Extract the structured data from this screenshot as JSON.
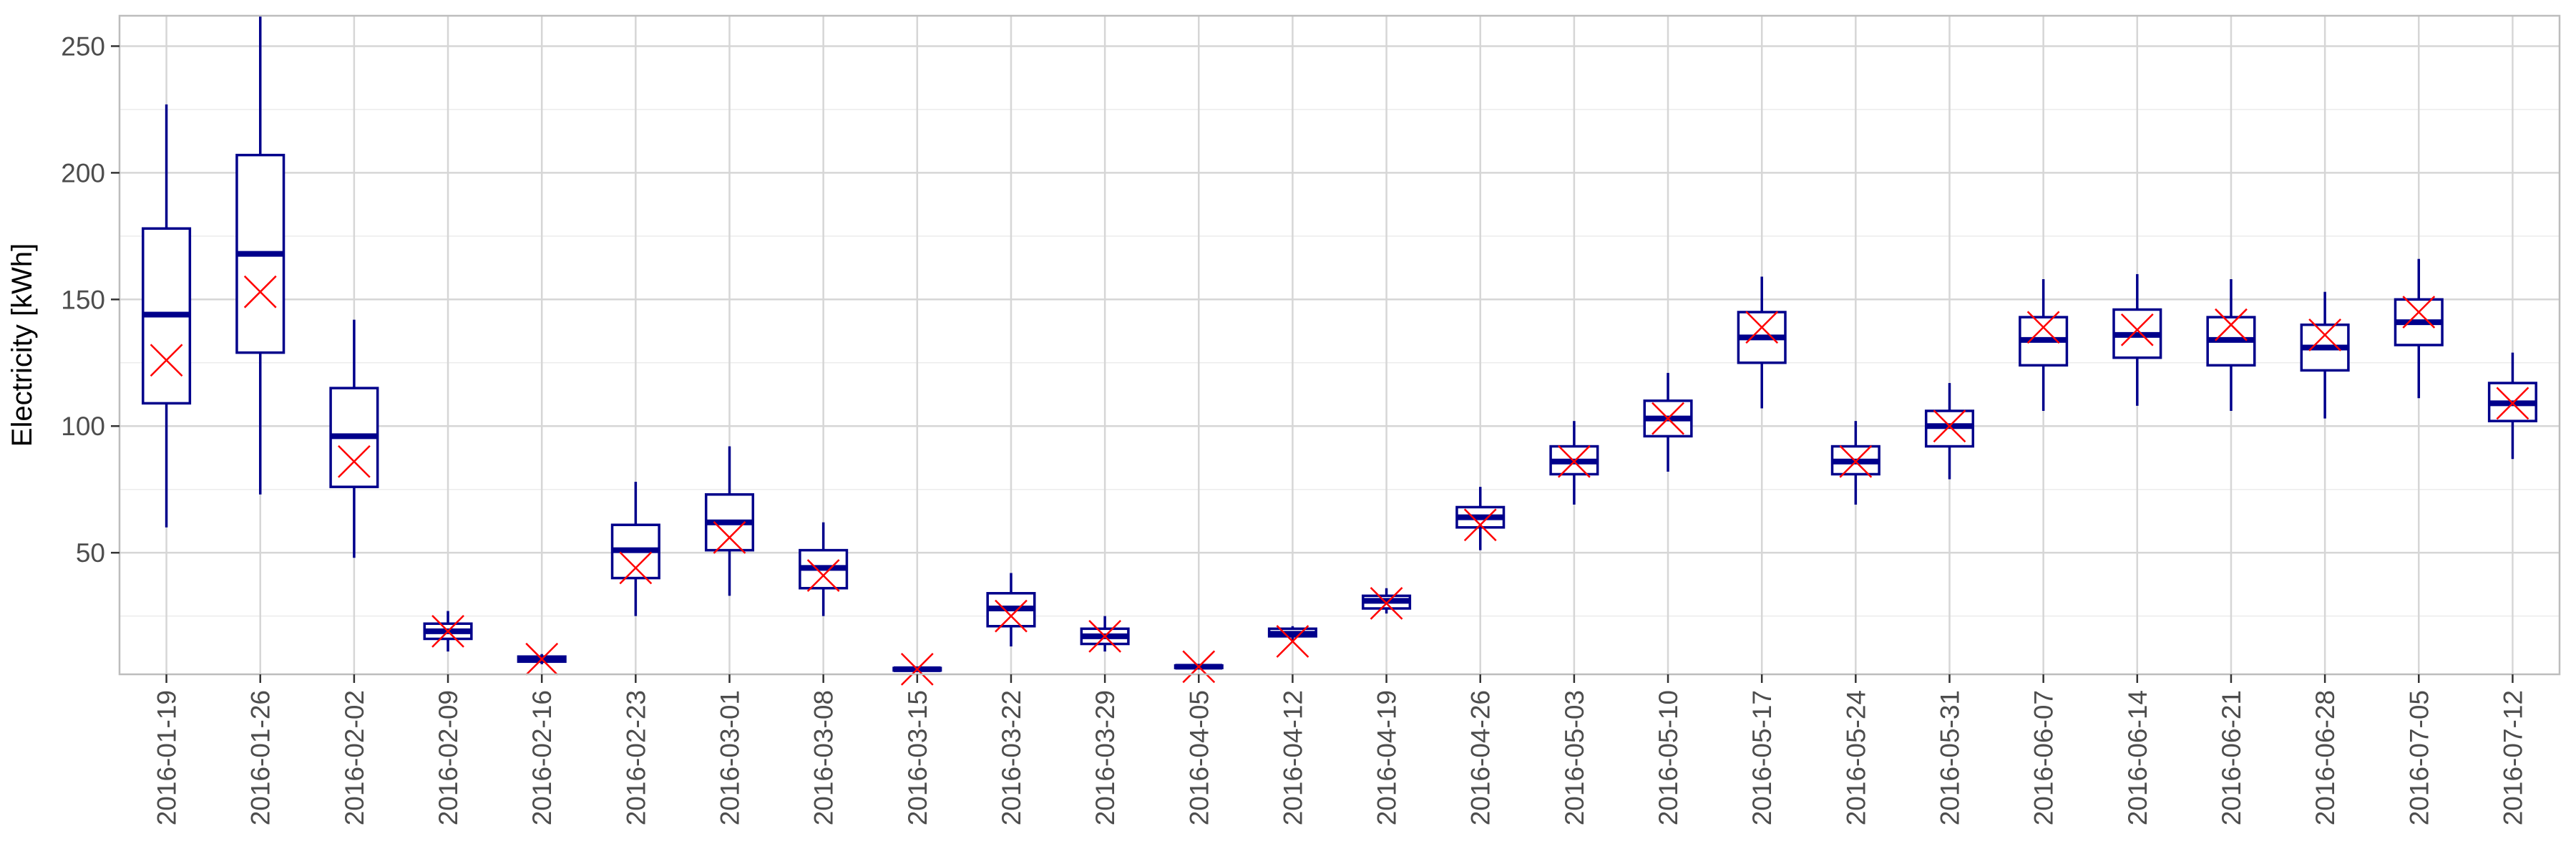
{
  "chart_data": {
    "type": "boxplot",
    "title": "",
    "xlabel": "",
    "ylabel": "Electricity [kWh]",
    "ylim": [
      2,
      262
    ],
    "yticks": [
      50,
      100,
      150,
      200,
      250
    ],
    "grid": true,
    "legend": "none",
    "colors": {
      "box": "#00008b",
      "mean_marker": "#ff0000",
      "grid_major": "#d6d6d6",
      "grid_minor": "#ececec",
      "panel_border": "#bdbdbd"
    },
    "mean_marker": "x",
    "categories": [
      "2016-01-19",
      "2016-01-26",
      "2016-02-02",
      "2016-02-09",
      "2016-02-16",
      "2016-02-23",
      "2016-03-01",
      "2016-03-08",
      "2016-03-15",
      "2016-03-22",
      "2016-03-29",
      "2016-04-05",
      "2016-04-12",
      "2016-04-19",
      "2016-04-26",
      "2016-05-03",
      "2016-05-10",
      "2016-05-17",
      "2016-05-24",
      "2016-05-31",
      "2016-06-07",
      "2016-06-14",
      "2016-06-21",
      "2016-06-28",
      "2016-07-05",
      "2016-07-12"
    ],
    "boxes": [
      {
        "low": 60,
        "q1": 109,
        "median": 144,
        "q3": 178,
        "high": 227,
        "mean": 126
      },
      {
        "low": 73,
        "q1": 129,
        "median": 168,
        "q3": 207,
        "high": 262,
        "mean": 153
      },
      {
        "low": 48,
        "q1": 76,
        "median": 96,
        "q3": 115,
        "high": 142,
        "mean": 86
      },
      {
        "low": 11,
        "q1": 16,
        "median": 19,
        "q3": 22,
        "high": 27,
        "mean": 19
      },
      {
        "low": 6,
        "q1": 7,
        "median": 8,
        "q3": 9,
        "high": 10,
        "mean": 8
      },
      {
        "low": 25,
        "q1": 40,
        "median": 51,
        "q3": 61,
        "high": 78,
        "mean": 44
      },
      {
        "low": 33,
        "q1": 51,
        "median": 62,
        "q3": 73,
        "high": 92,
        "mean": 56
      },
      {
        "low": 25,
        "q1": 36,
        "median": 44,
        "q3": 51,
        "high": 62,
        "mean": 41
      },
      {
        "low": 3,
        "q1": 3.5,
        "median": 4,
        "q3": 4.5,
        "high": 5,
        "mean": 4
      },
      {
        "low": 13,
        "q1": 21,
        "median": 28,
        "q3": 34,
        "high": 42,
        "mean": 25
      },
      {
        "low": 11,
        "q1": 14,
        "median": 17,
        "q3": 20,
        "high": 25,
        "mean": 17
      },
      {
        "low": 4,
        "q1": 4.5,
        "median": 5,
        "q3": 5.5,
        "high": 6,
        "mean": 5
      },
      {
        "low": 15,
        "q1": 17,
        "median": 18,
        "q3": 20,
        "high": 21,
        "mean": 15
      },
      {
        "low": 26,
        "q1": 28,
        "median": 31,
        "q3": 33,
        "high": 36,
        "mean": 30
      },
      {
        "low": 51,
        "q1": 60,
        "median": 64,
        "q3": 68,
        "high": 76,
        "mean": 61
      },
      {
        "low": 69,
        "q1": 81,
        "median": 86,
        "q3": 92,
        "high": 102,
        "mean": 86
      },
      {
        "low": 82,
        "q1": 96,
        "median": 103,
        "q3": 110,
        "high": 121,
        "mean": 103
      },
      {
        "low": 107,
        "q1": 125,
        "median": 135,
        "q3": 145,
        "high": 159,
        "mean": 139
      },
      {
        "low": 69,
        "q1": 81,
        "median": 86,
        "q3": 92,
        "high": 102,
        "mean": 86
      },
      {
        "low": 79,
        "q1": 92,
        "median": 100,
        "q3": 106,
        "high": 117,
        "mean": 100
      },
      {
        "low": 106,
        "q1": 124,
        "median": 134,
        "q3": 143,
        "high": 158,
        "mean": 139
      },
      {
        "low": 108,
        "q1": 127,
        "median": 136,
        "q3": 146,
        "high": 160,
        "mean": 138
      },
      {
        "low": 106,
        "q1": 124,
        "median": 134,
        "q3": 143,
        "high": 158,
        "mean": 140
      },
      {
        "low": 103,
        "q1": 122,
        "median": 131,
        "q3": 140,
        "high": 153,
        "mean": 136
      },
      {
        "low": 111,
        "q1": 132,
        "median": 141,
        "q3": 150,
        "high": 166,
        "mean": 145
      },
      {
        "low": 87,
        "q1": 102,
        "median": 109,
        "q3": 117,
        "high": 129,
        "mean": 109
      }
    ]
  }
}
